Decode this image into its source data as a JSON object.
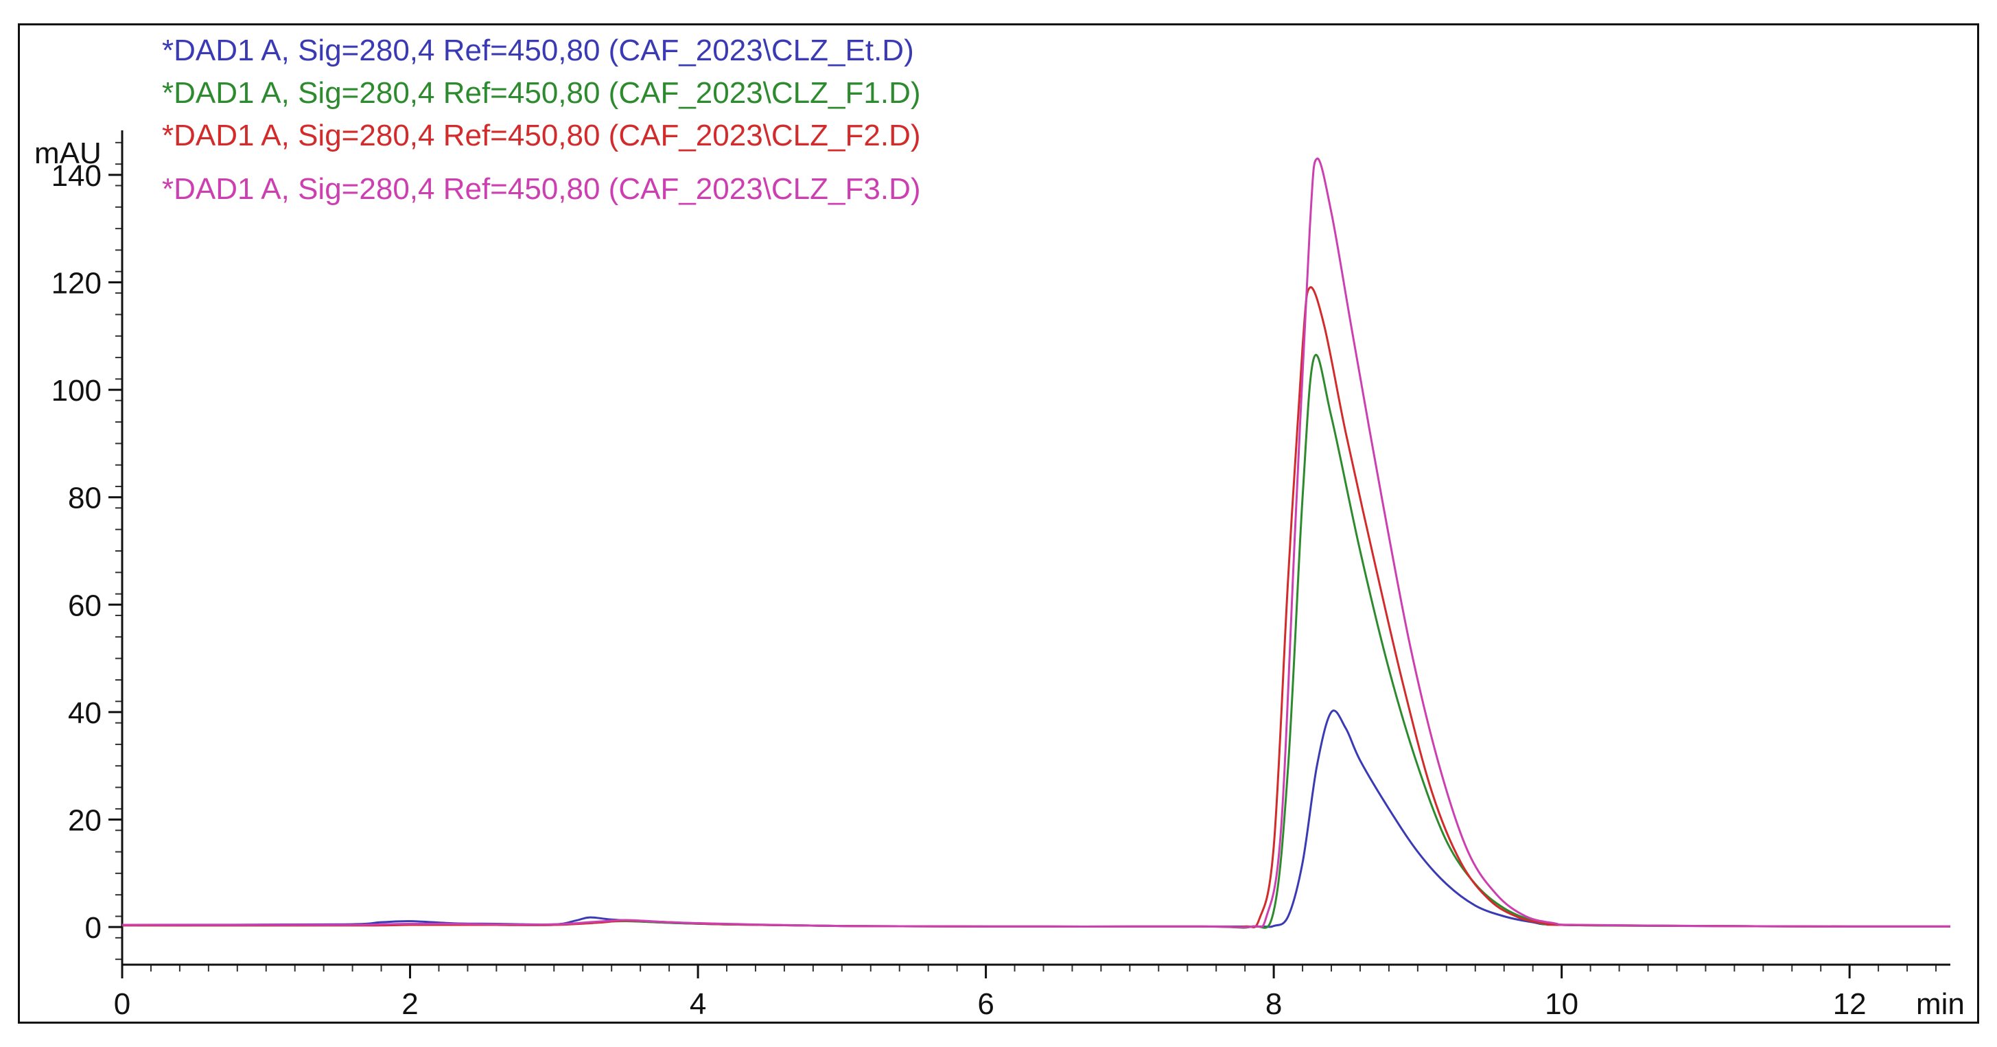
{
  "chart_data": {
    "type": "line",
    "title": "",
    "xlabel": "min",
    "ylabel": "mAU",
    "xlim": [
      0,
      12.7
    ],
    "ylim": [
      -7,
      147
    ],
    "grid": false,
    "legend_position": "top-left",
    "x_ticks": [
      0,
      2,
      4,
      6,
      8,
      10,
      12
    ],
    "x_tick_labels": [
      "0",
      "2",
      "4",
      "6",
      "8",
      "10",
      "12"
    ],
    "y_ticks": [
      0,
      20,
      40,
      60,
      80,
      100,
      120,
      140
    ],
    "y_tick_labels": [
      "0",
      "20",
      "40",
      "60",
      "80",
      "100",
      "120",
      "140"
    ],
    "series": [
      {
        "name": "*DAD1 A, Sig=280,4 Ref=450,80 (CAF_2023\\CLZ_Et.D)",
        "color": "#3a3ab4",
        "points": [
          [
            0,
            0.4
          ],
          [
            1.5,
            0.5
          ],
          [
            1.8,
            0.9
          ],
          [
            2.0,
            1.1
          ],
          [
            2.3,
            0.7
          ],
          [
            2.6,
            0.6
          ],
          [
            3.0,
            0.5
          ],
          [
            3.15,
            1.2
          ],
          [
            3.25,
            1.8
          ],
          [
            3.4,
            1.4
          ],
          [
            3.7,
            0.9
          ],
          [
            4.2,
            0.5
          ],
          [
            5.0,
            0.2
          ],
          [
            6.0,
            0.1
          ],
          [
            7.5,
            0.1
          ],
          [
            7.9,
            0.1
          ],
          [
            8.0,
            0.2
          ],
          [
            8.1,
            2.0
          ],
          [
            8.2,
            12.0
          ],
          [
            8.3,
            30.0
          ],
          [
            8.4,
            40.0
          ],
          [
            8.5,
            37.0
          ],
          [
            8.6,
            31.0
          ],
          [
            8.8,
            22.0
          ],
          [
            9.0,
            14.0
          ],
          [
            9.2,
            8.0
          ],
          [
            9.4,
            4.0
          ],
          [
            9.6,
            2.0
          ],
          [
            9.8,
            0.9
          ],
          [
            10.0,
            0.4
          ],
          [
            11.0,
            0.2
          ],
          [
            12.0,
            0.1
          ],
          [
            12.7,
            0.1
          ]
        ]
      },
      {
        "name": "*DAD1 A, Sig=280,4 Ref=450,80 (CAF_2023\\CLZ_F1.D)",
        "color": "#2e8a2e",
        "points": [
          [
            0,
            0.3
          ],
          [
            1.5,
            0.3
          ],
          [
            1.8,
            0.4
          ],
          [
            2.0,
            0.5
          ],
          [
            2.3,
            0.5
          ],
          [
            2.6,
            0.4
          ],
          [
            3.0,
            0.4
          ],
          [
            3.3,
            0.9
          ],
          [
            3.5,
            1.1
          ],
          [
            3.8,
            0.8
          ],
          [
            4.2,
            0.5
          ],
          [
            5.0,
            0.2
          ],
          [
            6.0,
            0.1
          ],
          [
            7.5,
            0.1
          ],
          [
            7.85,
            0.1
          ],
          [
            8.0,
            3.0
          ],
          [
            8.1,
            30.0
          ],
          [
            8.2,
            80.0
          ],
          [
            8.28,
            106.0
          ],
          [
            8.4,
            95.0
          ],
          [
            8.6,
            70.0
          ],
          [
            8.8,
            48.0
          ],
          [
            9.0,
            30.0
          ],
          [
            9.2,
            16.0
          ],
          [
            9.4,
            8.0
          ],
          [
            9.6,
            3.5
          ],
          [
            9.8,
            1.2
          ],
          [
            10.0,
            0.4
          ],
          [
            11.0,
            0.2
          ],
          [
            12.0,
            0.1
          ],
          [
            12.7,
            0.1
          ]
        ]
      },
      {
        "name": "*DAD1 A, Sig=280,4 Ref=450,80 (CAF_2023\\CLZ_F2.D)",
        "color": "#d22b2b",
        "points": [
          [
            0,
            0.3
          ],
          [
            1.5,
            0.3
          ],
          [
            1.8,
            0.3
          ],
          [
            2.0,
            0.4
          ],
          [
            2.3,
            0.4
          ],
          [
            2.6,
            0.4
          ],
          [
            3.0,
            0.4
          ],
          [
            3.3,
            0.8
          ],
          [
            3.5,
            1.2
          ],
          [
            3.8,
            0.9
          ],
          [
            4.2,
            0.5
          ],
          [
            5.0,
            0.2
          ],
          [
            6.0,
            0.1
          ],
          [
            7.5,
            0.1
          ],
          [
            7.8,
            0.1
          ],
          [
            7.9,
            1.5
          ],
          [
            8.0,
            15.0
          ],
          [
            8.1,
            65.0
          ],
          [
            8.2,
            108.0
          ],
          [
            8.25,
            119.0
          ],
          [
            8.35,
            112.0
          ],
          [
            8.5,
            92.0
          ],
          [
            8.7,
            68.0
          ],
          [
            8.9,
            45.0
          ],
          [
            9.1,
            25.0
          ],
          [
            9.3,
            12.0
          ],
          [
            9.5,
            5.0
          ],
          [
            9.7,
            1.8
          ],
          [
            9.9,
            0.6
          ],
          [
            10.0,
            0.4
          ],
          [
            11.0,
            0.2
          ],
          [
            12.0,
            0.1
          ],
          [
            12.7,
            0.1
          ]
        ]
      },
      {
        "name": "*DAD1 A, Sig=280,4 Ref=450,80 (CAF_2023\\CLZ_F3.D)",
        "color": "#cc3fb0",
        "points": [
          [
            0,
            0.4
          ],
          [
            1.5,
            0.4
          ],
          [
            1.8,
            0.5
          ],
          [
            2.0,
            0.6
          ],
          [
            2.3,
            0.6
          ],
          [
            2.6,
            0.5
          ],
          [
            3.0,
            0.5
          ],
          [
            3.3,
            1.0
          ],
          [
            3.5,
            1.3
          ],
          [
            3.8,
            0.9
          ],
          [
            4.2,
            0.6
          ],
          [
            5.0,
            0.2
          ],
          [
            6.0,
            0.1
          ],
          [
            7.5,
            0.1
          ],
          [
            7.85,
            0.1
          ],
          [
            7.95,
            2.0
          ],
          [
            8.05,
            18.0
          ],
          [
            8.15,
            75.0
          ],
          [
            8.25,
            130.0
          ],
          [
            8.3,
            143.0
          ],
          [
            8.4,
            133.0
          ],
          [
            8.55,
            110.0
          ],
          [
            8.75,
            80.0
          ],
          [
            8.95,
            52.0
          ],
          [
            9.15,
            30.0
          ],
          [
            9.35,
            14.0
          ],
          [
            9.55,
            6.0
          ],
          [
            9.75,
            2.0
          ],
          [
            9.95,
            0.7
          ],
          [
            10.1,
            0.4
          ],
          [
            11.0,
            0.2
          ],
          [
            12.0,
            0.1
          ],
          [
            12.7,
            0.1
          ]
        ]
      }
    ]
  }
}
